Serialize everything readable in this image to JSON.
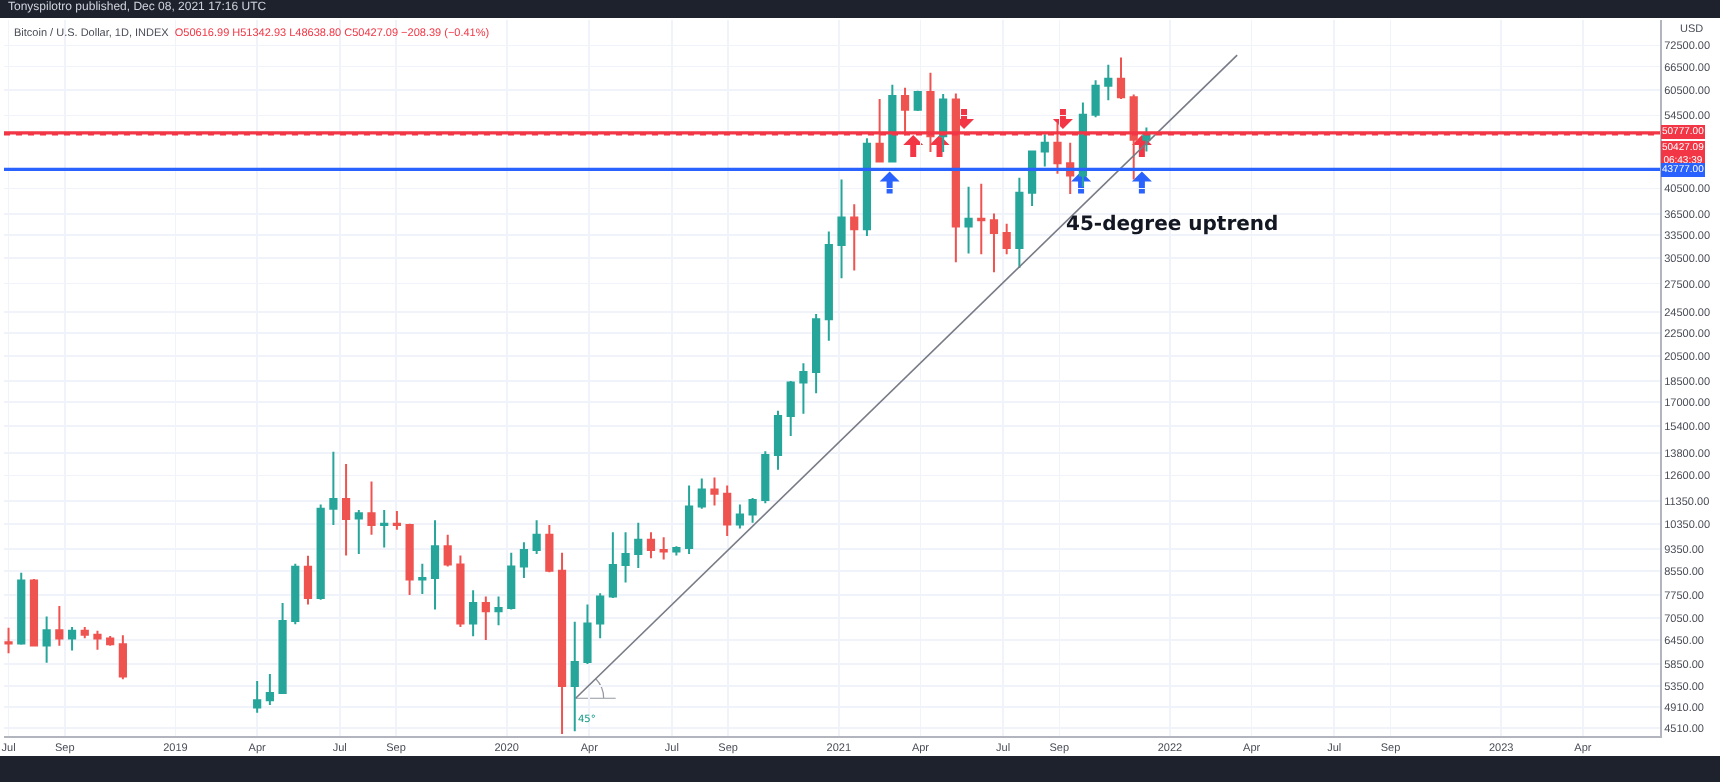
{
  "chart_data": {
    "type": "candlestick",
    "title": "Bitcoin / U.S. Dollar, 1D, INDEX",
    "subtitle": "O50616.99 H51342.93 L48638.80 C50427.09 −208.39 (−0.41%)",
    "ylabel": "USD",
    "annotations": [
      "Tonyspilotro published, Dec 08, 2021 17:16 UTC",
      "45-degree uptrend",
      "45°"
    ],
    "log": "y",
    "grid": true,
    "xlim": [
      "2018-06-26",
      "2023-06-25"
    ],
    "xticks": [
      {
        "value": "2018-07-01",
        "label": "Jul"
      },
      {
        "value": "2018-09-01",
        "label": "Sep"
      },
      {
        "value": "2019-01-01",
        "label": "2019"
      },
      {
        "value": "2019-04-01",
        "label": "Apr"
      },
      {
        "value": "2019-07-01",
        "label": "Jul"
      },
      {
        "value": "2019-09-01",
        "label": "Sep"
      },
      {
        "value": "2020-01-01",
        "label": "2020"
      },
      {
        "value": "2020-04-01",
        "label": "Apr"
      },
      {
        "value": "2020-07-01",
        "label": "Jul"
      },
      {
        "value": "2020-09-01",
        "label": "Sep"
      },
      {
        "value": "2021-01-01",
        "label": "2021"
      },
      {
        "value": "2021-04-01",
        "label": "Apr"
      },
      {
        "value": "2021-07-01",
        "label": "Jul"
      },
      {
        "value": "2021-09-01",
        "label": "Sep"
      },
      {
        "value": "2022-01-01",
        "label": "2022"
      },
      {
        "value": "2022-04-01",
        "label": "Apr"
      },
      {
        "value": "2022-07-01",
        "label": "Jul"
      },
      {
        "value": "2022-09-01",
        "label": "Sep"
      },
      {
        "value": "2023-01-01",
        "label": "2023"
      },
      {
        "value": "2023-04-01",
        "label": "Apr"
      }
    ],
    "ylim": [
      4365,
      80400
    ],
    "yticks": [
      {
        "value": 4510,
        "label": "4510.00"
      },
      {
        "value": 4910,
        "label": "4910.00"
      },
      {
        "value": 5350,
        "label": "5350.00"
      },
      {
        "value": 5850,
        "label": "5850.00"
      },
      {
        "value": 6450,
        "label": "6450.00"
      },
      {
        "value": 7050,
        "label": "7050.00"
      },
      {
        "value": 7750,
        "label": "7750.00"
      },
      {
        "value": 8550,
        "label": "8550.00"
      },
      {
        "value": 9350,
        "label": "9350.00"
      },
      {
        "value": 10350,
        "label": "10350.00"
      },
      {
        "value": 11350,
        "label": "11350.00"
      },
      {
        "value": 12600,
        "label": "12600.00"
      },
      {
        "value": 13800,
        "label": "13800.00"
      },
      {
        "value": 15400,
        "label": "15400.00"
      },
      {
        "value": 17000,
        "label": "17000.00"
      },
      {
        "value": 18500,
        "label": "18500.00"
      },
      {
        "value": 20500,
        "label": "20500.00"
      },
      {
        "value": 22500,
        "label": "22500.00"
      },
      {
        "value": 24500,
        "label": "24500.00"
      },
      {
        "value": 27500,
        "label": "27500.00"
      },
      {
        "value": 30500,
        "label": "30500.00"
      },
      {
        "value": 33500,
        "label": "33500.00"
      },
      {
        "value": 36500,
        "label": "36500.00"
      },
      {
        "value": 40500,
        "label": "40500.00"
      },
      {
        "value": 54500,
        "label": "54500.00"
      },
      {
        "value": 60500,
        "label": "60500.00"
      },
      {
        "value": 66500,
        "label": "66500.00"
      },
      {
        "value": 72500,
        "label": "72500.00"
      }
    ],
    "ref_lines": [
      {
        "axis": "y",
        "value": 50777,
        "label": "50777.00",
        "color": "#f23645"
      },
      {
        "axis": "y",
        "value": 50427.09,
        "label": "50427.09\n06:43:39",
        "color": "#f23645",
        "line_style": "dotted"
      },
      {
        "axis": "y",
        "value": 43777,
        "label": "43777.00",
        "color": "#2962ff"
      }
    ],
    "series": [
      {
        "x": [
          "2018-07-01",
          "2018-07-15",
          "2018-07-29",
          "2018-08-12",
          "2018-08-26",
          "2018-09-09",
          "2018-09-23",
          "2018-10-07",
          "2018-10-21",
          "2018-11-04",
          "2019-04-01",
          "2019-04-15",
          "2019-04-29",
          "2019-05-13",
          "2019-05-27",
          "2019-06-10",
          "2019-06-24",
          "2019-07-08",
          "2019-07-22",
          "2019-08-05",
          "2019-08-19",
          "2019-09-02",
          "2019-09-16",
          "2019-09-30",
          "2019-10-14",
          "2019-10-28",
          "2019-11-11",
          "2019-11-25",
          "2019-12-09",
          "2019-12-23",
          "2020-01-06",
          "2020-01-20",
          "2020-02-03",
          "2020-02-17",
          "2020-03-02",
          "2020-03-16",
          "2020-03-30",
          "2020-04-13",
          "2020-04-27",
          "2020-05-11",
          "2020-05-25",
          "2020-06-08",
          "2020-06-22",
          "2020-07-06",
          "2020-07-20",
          "2020-08-03",
          "2020-08-17",
          "2020-08-31",
          "2020-09-14",
          "2020-09-28",
          "2020-10-12",
          "2020-10-26",
          "2020-11-09",
          "2020-11-23",
          "2020-12-07",
          "2020-12-21",
          "2021-01-04",
          "2021-01-18",
          "2021-02-01",
          "2021-02-15",
          "2021-03-01",
          "2021-03-15",
          "2021-03-29",
          "2021-04-12",
          "2021-04-26",
          "2021-05-10",
          "2021-05-24",
          "2021-06-07",
          "2021-06-21",
          "2021-07-05",
          "2021-07-19",
          "2021-08-02",
          "2021-08-16",
          "2021-08-30",
          "2021-09-13",
          "2021-09-27",
          "2021-10-11",
          "2021-10-25",
          "2021-11-08",
          "2021-11-22",
          "2021-12-06"
        ],
        "ohlc": [
          [
            6390,
            6780,
            6110,
            6360
          ],
          [
            6360,
            8480,
            6330,
            8220
          ],
          [
            8220,
            8270,
            6300,
            6310
          ],
          [
            6310,
            7100,
            5880,
            6710
          ],
          [
            6710,
            7410,
            6300,
            6490
          ],
          [
            6490,
            6800,
            6180,
            6700
          ],
          [
            6700,
            6800,
            6500,
            6590
          ],
          [
            6590,
            6700,
            6200,
            6490
          ],
          [
            6490,
            6560,
            6300,
            6340
          ],
          [
            6340,
            6580,
            5500,
            5560
          ],
          [
            4900,
            5460,
            4800,
            5050
          ],
          [
            5050,
            5620,
            4950,
            5200
          ],
          [
            5200,
            7500,
            5200,
            6970
          ],
          [
            6970,
            8800,
            6880,
            8690
          ],
          [
            8690,
            9090,
            7450,
            7650
          ],
          [
            7650,
            11200,
            7600,
            11000
          ],
          [
            11000,
            13880,
            10300,
            11450
          ],
          [
            11450,
            13200,
            9100,
            10550
          ],
          [
            10580,
            10950,
            9150,
            10800
          ],
          [
            10800,
            12300,
            9900,
            10300
          ],
          [
            10300,
            10950,
            9400,
            10350
          ],
          [
            10350,
            10900,
            10100,
            10300
          ],
          [
            10300,
            10350,
            7750,
            8250
          ],
          [
            8250,
            8800,
            7780,
            8300
          ],
          [
            8300,
            10500,
            7300,
            9450
          ],
          [
            9450,
            9900,
            8700,
            8770
          ],
          [
            8770,
            9100,
            6800,
            6900
          ],
          [
            6900,
            7900,
            6550,
            7500
          ],
          [
            7500,
            7700,
            6450,
            7250
          ],
          [
            7250,
            7700,
            6850,
            7350
          ],
          [
            7350,
            9200,
            7300,
            8700
          ],
          [
            8700,
            9600,
            8300,
            9300
          ],
          [
            9300,
            10500,
            9150,
            9900
          ],
          [
            9900,
            10300,
            8500,
            8550
          ],
          [
            8550,
            9200,
            4400,
            5350
          ],
          [
            5350,
            6950,
            4450,
            5900
          ],
          [
            5900,
            7450,
            5850,
            6900
          ],
          [
            6900,
            7800,
            6500,
            7700
          ],
          [
            7700,
            10000,
            7650,
            8750
          ],
          [
            8750,
            10000,
            8150,
            9150
          ],
          [
            9150,
            10400,
            8650,
            9700
          ],
          [
            9700,
            10000,
            9000,
            9300
          ],
          [
            9300,
            9800,
            8950,
            9250
          ],
          [
            9250,
            9450,
            9100,
            9380
          ],
          [
            9380,
            12100,
            9150,
            11100
          ],
          [
            11100,
            12450,
            11000,
            11900
          ],
          [
            11900,
            12500,
            11150,
            11700
          ],
          [
            11700,
            12100,
            9850,
            10320
          ],
          [
            10320,
            11200,
            10150,
            10750
          ],
          [
            10750,
            11500,
            10400,
            11400
          ],
          [
            11400,
            13900,
            11250,
            13700
          ],
          [
            13700,
            16400,
            12900,
            16050
          ],
          [
            16050,
            18500,
            14800,
            18400
          ],
          [
            18400,
            19900,
            16200,
            19200
          ],
          [
            19200,
            24300,
            17600,
            23800
          ],
          [
            23800,
            34000,
            21800,
            32200
          ],
          [
            32200,
            42000,
            28100,
            36000
          ],
          [
            36000,
            38000,
            29000,
            34300
          ],
          [
            34300,
            49700,
            33400,
            48600
          ],
          [
            48600,
            58300,
            45000,
            45200
          ],
          [
            45200,
            61800,
            45000,
            59000
          ],
          [
            59000,
            61000,
            50300,
            55800
          ],
          [
            55800,
            60300,
            55500,
            60000
          ],
          [
            60000,
            64850,
            47000,
            50100
          ],
          [
            50100,
            59500,
            47000,
            58200
          ],
          [
            58200,
            59600,
            30000,
            34700
          ],
          [
            34700,
            40800,
            31100,
            35800
          ],
          [
            35800,
            41300,
            31000,
            35600
          ],
          [
            35600,
            36600,
            28800,
            33800
          ],
          [
            33800,
            35100,
            31000,
            31800
          ],
          [
            31800,
            42300,
            29300,
            39800
          ],
          [
            39800,
            47200,
            37700,
            47100
          ],
          [
            47100,
            50500,
            44300,
            48800
          ],
          [
            48800,
            52900,
            43000,
            44900
          ],
          [
            44900,
            48800,
            39600,
            42700
          ],
          [
            42700,
            57500,
            40800,
            54700
          ],
          [
            54700,
            62900,
            54100,
            61500
          ],
          [
            61500,
            67000,
            58000,
            63300
          ],
          [
            63300,
            69000,
            58300,
            58700
          ],
          [
            58700,
            59400,
            42000,
            49400
          ],
          [
            49400,
            51900,
            47100,
            50427.09
          ]
        ]
      },
      {
        "type": "line",
        "x": [
          "2020-03-17",
          "2022-03-16"
        ],
        "values": [
          5090,
          69700
        ],
        "color": "#787b86"
      }
    ]
  }
}
